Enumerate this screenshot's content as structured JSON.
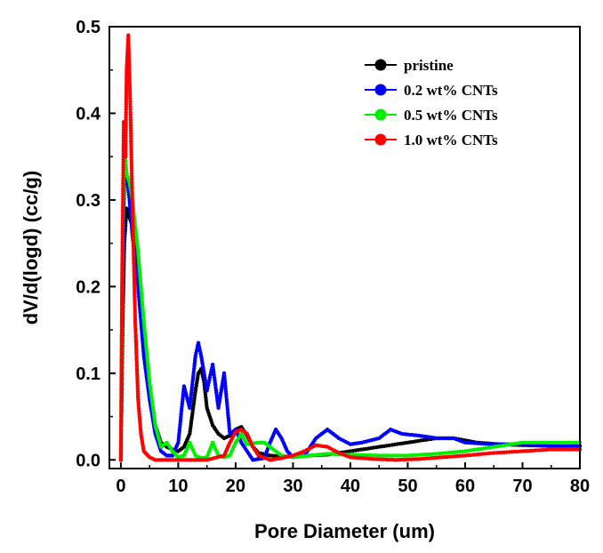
{
  "chart_data": {
    "type": "line",
    "title": "",
    "xlabel": "Pore Diameter (um)",
    "ylabel": "dV/d(logd) (cc/g)",
    "xlim": [
      -2,
      80
    ],
    "ylim": [
      -0.01,
      0.5
    ],
    "xticks": [
      "0",
      "10",
      "20",
      "30",
      "40",
      "50",
      "60",
      "70",
      "80"
    ],
    "yticks": [
      "0.0",
      "0.1",
      "0.2",
      "0.3",
      "0.4",
      "0.5"
    ],
    "xtick_values": [
      0,
      10,
      20,
      30,
      40,
      50,
      60,
      70,
      80
    ],
    "ytick_values": [
      0.0,
      0.1,
      0.2,
      0.3,
      0.4,
      0.5
    ],
    "grid": false,
    "legend_position": "top-right",
    "series": [
      {
        "name": "pristine",
        "color": "#000000",
        "points": [
          [
            0,
            0.0
          ],
          [
            0.3,
            0.15
          ],
          [
            0.6,
            0.25
          ],
          [
            1,
            0.29
          ],
          [
            1.5,
            0.28
          ],
          [
            2,
            0.27
          ],
          [
            3,
            0.22
          ],
          [
            4,
            0.14
          ],
          [
            5,
            0.08
          ],
          [
            6,
            0.04
          ],
          [
            7,
            0.02
          ],
          [
            8,
            0.015
          ],
          [
            9,
            0.012
          ],
          [
            10,
            0.01
          ],
          [
            11,
            0.015
          ],
          [
            12,
            0.03
          ],
          [
            13,
            0.08
          ],
          [
            13.5,
            0.1
          ],
          [
            14,
            0.105
          ],
          [
            14.5,
            0.09
          ],
          [
            15,
            0.06
          ],
          [
            16,
            0.04
          ],
          [
            17,
            0.03
          ],
          [
            18,
            0.025
          ],
          [
            19,
            0.028
          ],
          [
            20,
            0.035
          ],
          [
            21,
            0.038
          ],
          [
            22,
            0.028
          ],
          [
            23,
            0.015
          ],
          [
            24,
            0.008
          ],
          [
            26,
            0.005
          ],
          [
            28,
            0.004
          ],
          [
            30,
            0.004
          ],
          [
            33,
            0.005
          ],
          [
            36,
            0.006
          ],
          [
            40,
            0.01
          ],
          [
            45,
            0.015
          ],
          [
            50,
            0.02
          ],
          [
            55,
            0.025
          ],
          [
            58,
            0.025
          ],
          [
            62,
            0.02
          ],
          [
            66,
            0.018
          ],
          [
            70,
            0.017
          ],
          [
            75,
            0.016
          ],
          [
            80,
            0.016
          ]
        ]
      },
      {
        "name": "0.2 wt% CNTs",
        "color": "#0000ff",
        "points": [
          [
            0,
            0.0
          ],
          [
            0.3,
            0.2
          ],
          [
            0.6,
            0.32
          ],
          [
            1,
            0.33
          ],
          [
            1.5,
            0.3
          ],
          [
            2,
            0.26
          ],
          [
            3,
            0.2
          ],
          [
            4,
            0.12
          ],
          [
            5,
            0.07
          ],
          [
            6,
            0.03
          ],
          [
            7,
            0.01
          ],
          [
            8,
            0.005
          ],
          [
            9,
            0.005
          ],
          [
            10,
            0.02
          ],
          [
            11,
            0.085
          ],
          [
            12,
            0.06
          ],
          [
            13,
            0.12
          ],
          [
            13.5,
            0.135
          ],
          [
            14,
            0.12
          ],
          [
            15,
            0.08
          ],
          [
            16,
            0.11
          ],
          [
            17,
            0.06
          ],
          [
            18,
            0.1
          ],
          [
            19,
            0.03
          ],
          [
            20,
            0.035
          ],
          [
            21,
            0.02
          ],
          [
            22,
            0.01
          ],
          [
            23,
            0.0
          ],
          [
            25,
            0.002
          ],
          [
            26,
            0.02
          ],
          [
            27,
            0.035
          ],
          [
            28,
            0.025
          ],
          [
            29,
            0.01
          ],
          [
            30,
            0.003
          ],
          [
            32,
            0.005
          ],
          [
            34,
            0.025
          ],
          [
            36,
            0.035
          ],
          [
            38,
            0.025
          ],
          [
            40,
            0.018
          ],
          [
            42,
            0.02
          ],
          [
            45,
            0.025
          ],
          [
            47,
            0.035
          ],
          [
            49,
            0.03
          ],
          [
            52,
            0.028
          ],
          [
            55,
            0.025
          ],
          [
            58,
            0.025
          ],
          [
            60,
            0.02
          ],
          [
            65,
            0.018
          ],
          [
            70,
            0.018
          ],
          [
            75,
            0.016
          ],
          [
            80,
            0.016
          ]
        ]
      },
      {
        "name": "0.5 wt% CNTs",
        "color": "#00ee00",
        "points": [
          [
            0,
            0.0
          ],
          [
            0.3,
            0.25
          ],
          [
            0.6,
            0.36
          ],
          [
            1,
            0.33
          ],
          [
            1.5,
            0.32
          ],
          [
            2,
            0.3
          ],
          [
            3,
            0.24
          ],
          [
            4,
            0.16
          ],
          [
            5,
            0.09
          ],
          [
            6,
            0.04
          ],
          [
            7,
            0.015
          ],
          [
            8,
            0.02
          ],
          [
            9,
            0.01
          ],
          [
            10,
            0.003
          ],
          [
            11,
            0.005
          ],
          [
            12,
            0.02
          ],
          [
            13,
            0.005
          ],
          [
            14,
            0.002
          ],
          [
            15,
            0.003
          ],
          [
            16,
            0.02
          ],
          [
            17,
            0.005
          ],
          [
            18,
            0.003
          ],
          [
            19,
            0.005
          ],
          [
            20,
            0.02
          ],
          [
            21,
            0.03
          ],
          [
            22,
            0.018
          ],
          [
            24,
            0.02
          ],
          [
            25,
            0.02
          ],
          [
            26,
            0.015
          ],
          [
            28,
            0.005
          ],
          [
            30,
            0.003
          ],
          [
            33,
            0.005
          ],
          [
            36,
            0.007
          ],
          [
            40,
            0.006
          ],
          [
            45,
            0.005
          ],
          [
            50,
            0.005
          ],
          [
            55,
            0.007
          ],
          [
            60,
            0.01
          ],
          [
            65,
            0.015
          ],
          [
            70,
            0.02
          ],
          [
            75,
            0.02
          ],
          [
            80,
            0.02
          ]
        ]
      },
      {
        "name": "1.0 wt% CNTs",
        "color": "#ff0000",
        "points": [
          [
            0,
            0.0
          ],
          [
            0.2,
            0.2
          ],
          [
            0.5,
            0.39
          ],
          [
            0.8,
            0.35
          ],
          [
            1,
            0.45
          ],
          [
            1.3,
            0.49
          ],
          [
            1.6,
            0.42
          ],
          [
            2,
            0.3
          ],
          [
            2.5,
            0.16
          ],
          [
            3,
            0.07
          ],
          [
            3.5,
            0.03
          ],
          [
            4,
            0.01
          ],
          [
            5,
            0.003
          ],
          [
            6,
            0.0
          ],
          [
            10,
            0.0
          ],
          [
            15,
            0.0
          ],
          [
            18,
            0.005
          ],
          [
            19,
            0.02
          ],
          [
            20,
            0.032
          ],
          [
            21,
            0.035
          ],
          [
            22,
            0.03
          ],
          [
            23,
            0.015
          ],
          [
            24,
            0.005
          ],
          [
            26,
            0.0
          ],
          [
            28,
            0.002
          ],
          [
            30,
            0.005
          ],
          [
            32,
            0.01
          ],
          [
            34,
            0.017
          ],
          [
            36,
            0.015
          ],
          [
            38,
            0.008
          ],
          [
            40,
            0.003
          ],
          [
            44,
            0.001
          ],
          [
            48,
            0.0
          ],
          [
            52,
            0.001
          ],
          [
            56,
            0.003
          ],
          [
            60,
            0.005
          ],
          [
            65,
            0.008
          ],
          [
            70,
            0.01
          ],
          [
            75,
            0.012
          ],
          [
            80,
            0.012
          ]
        ]
      }
    ]
  }
}
